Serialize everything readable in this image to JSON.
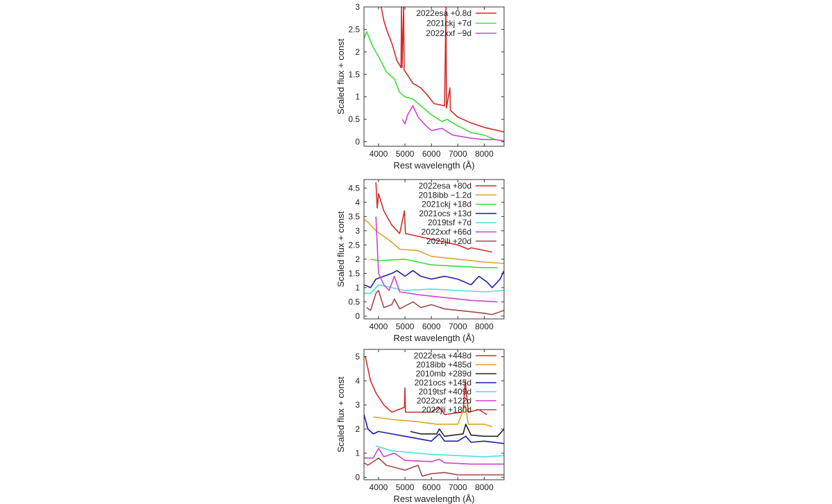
{
  "chart_data": [
    {
      "type": "line",
      "xlabel": "Rest wavelength (Å)",
      "ylabel": "Scaled flux + const",
      "xlim": [
        3450,
        8750
      ],
      "ylim": [
        -0.1,
        3
      ],
      "xticks": [
        4000,
        5000,
        6000,
        7000,
        8000
      ],
      "yticks": [
        0,
        0.5,
        1,
        1.5,
        2,
        2.5,
        3
      ],
      "legend": "top-right",
      "series": [
        {
          "name": "2022esa +0.8d",
          "color": "#d42a2a",
          "points": [
            [
              4100,
              3
            ],
            [
              4200,
              2.7
            ],
            [
              4300,
              2.5
            ],
            [
              4500,
              2.2
            ],
            [
              4700,
              1.8
            ],
            [
              4850,
              1.65
            ],
            [
              4870,
              3
            ],
            [
              4890,
              1.65
            ],
            [
              4950,
              3
            ],
            [
              4970,
              1.6
            ],
            [
              5300,
              1.3
            ],
            [
              5600,
              1.2
            ],
            [
              5900,
              1.0
            ],
            [
              6100,
              0.85
            ],
            [
              6500,
              0.8
            ],
            [
              6550,
              3
            ],
            [
              6570,
              0.75
            ],
            [
              6700,
              1.2
            ],
            [
              6720,
              0.7
            ],
            [
              7000,
              0.55
            ],
            [
              7500,
              0.42
            ],
            [
              8000,
              0.32
            ],
            [
              8750,
              0.22
            ]
          ]
        },
        {
          "name": "2021ckj +7d",
          "color": "#3cdc3c",
          "points": [
            [
              3450,
              2.3
            ],
            [
              3550,
              2.45
            ],
            [
              3800,
              2.1
            ],
            [
              4000,
              1.9
            ],
            [
              4300,
              1.55
            ],
            [
              4600,
              1.4
            ],
            [
              4800,
              1.1
            ],
            [
              5000,
              1.0
            ],
            [
              5300,
              0.95
            ],
            [
              5600,
              0.8
            ],
            [
              6000,
              0.6
            ],
            [
              6400,
              0.45
            ],
            [
              6600,
              0.5
            ],
            [
              7000,
              0.35
            ],
            [
              7200,
              0.3
            ],
            [
              7500,
              0.2
            ],
            [
              8000,
              0.15
            ],
            [
              8400,
              0.05
            ]
          ]
        },
        {
          "name": "2022xxf −9d",
          "color": "#d040d0",
          "points": [
            [
              4900,
              0.5
            ],
            [
              5000,
              0.4
            ],
            [
              5100,
              0.6
            ],
            [
              5300,
              0.8
            ],
            [
              5500,
              0.55
            ],
            [
              5800,
              0.35
            ],
            [
              6000,
              0.25
            ],
            [
              6400,
              0.3
            ],
            [
              6800,
              0.15
            ],
            [
              7500,
              0.08
            ],
            [
              8000,
              0.05
            ],
            [
              8400,
              0.05
            ],
            [
              8750,
              0.02
            ]
          ]
        }
      ]
    },
    {
      "type": "line",
      "xlabel": "Rest wavelength (Å)",
      "ylabel": "Scaled flux + const",
      "xlim": [
        3450,
        8750
      ],
      "ylim": [
        -0.1,
        4.8
      ],
      "xticks": [
        4000,
        5000,
        6000,
        7000,
        8000
      ],
      "yticks": [
        0,
        0.5,
        1,
        1.5,
        2,
        2.5,
        3,
        3.5,
        4,
        4.5
      ],
      "legend": "top-right",
      "series": [
        {
          "name": "2022esa +80d",
          "color": "#d42a2a",
          "points": [
            [
              3900,
              4.7
            ],
            [
              3950,
              3.8
            ],
            [
              4000,
              4.3
            ],
            [
              4200,
              3.7
            ],
            [
              4500,
              3.2
            ],
            [
              4800,
              2.9
            ],
            [
              4980,
              3.7
            ],
            [
              5020,
              2.9
            ],
            [
              6000,
              2.7
            ],
            [
              7000,
              2.5
            ],
            [
              7400,
              2.35
            ],
            [
              7500,
              2.4
            ],
            [
              8300,
              2.25
            ]
          ]
        },
        {
          "name": "2018ibb −1.2d",
          "color": "#e0a228",
          "points": [
            [
              3450,
              3.4
            ],
            [
              3600,
              3.3
            ],
            [
              3900,
              3.0
            ],
            [
              4200,
              2.8
            ],
            [
              4500,
              2.6
            ],
            [
              4800,
              2.35
            ],
            [
              5500,
              2.3
            ],
            [
              6000,
              2.1
            ],
            [
              7000,
              2.0
            ],
            [
              8000,
              1.9
            ],
            [
              8750,
              1.85
            ]
          ]
        },
        {
          "name": "2021ckj +18d",
          "color": "#3cdc3c",
          "points": [
            [
              3700,
              2.0
            ],
            [
              4000,
              1.95
            ],
            [
              5000,
              2.0
            ],
            [
              6000,
              1.8
            ],
            [
              7000,
              1.75
            ],
            [
              8000,
              1.7
            ],
            [
              8500,
              1.7
            ]
          ]
        },
        {
          "name": "2021ocs +13d",
          "color": "#1c1ca8",
          "points": [
            [
              3450,
              1.1
            ],
            [
              3700,
              1.0
            ],
            [
              3900,
              1.3
            ],
            [
              4200,
              1.4
            ],
            [
              4500,
              1.5
            ],
            [
              4700,
              1.6
            ],
            [
              5000,
              1.4
            ],
            [
              5300,
              1.6
            ],
            [
              5600,
              1.4
            ],
            [
              6000,
              1.3
            ],
            [
              6500,
              1.4
            ],
            [
              7000,
              1.3
            ],
            [
              7500,
              1.1
            ],
            [
              7800,
              1.4
            ],
            [
              8100,
              1.2
            ],
            [
              8300,
              1.0
            ],
            [
              8600,
              1.3
            ],
            [
              8750,
              1.6
            ]
          ]
        },
        {
          "name": "2019tsf +7d",
          "color": "#48e0e0",
          "points": [
            [
              3450,
              0.8
            ],
            [
              3700,
              0.8
            ],
            [
              4000,
              1.1
            ],
            [
              4500,
              1.0
            ],
            [
              5000,
              0.9
            ],
            [
              6000,
              0.95
            ],
            [
              7000,
              0.9
            ],
            [
              8000,
              0.85
            ],
            [
              8750,
              0.9
            ]
          ]
        },
        {
          "name": "2022xxf +66d",
          "color": "#d040d0",
          "points": [
            [
              3900,
              3.5
            ],
            [
              4000,
              1.5
            ],
            [
              4200,
              1.1
            ],
            [
              4400,
              0.9
            ],
            [
              4600,
              1.4
            ],
            [
              4800,
              0.85
            ],
            [
              5500,
              0.75
            ],
            [
              6500,
              0.65
            ],
            [
              7500,
              0.55
            ],
            [
              8500,
              0.5
            ]
          ]
        },
        {
          "name": "2022jli +20d",
          "color": "#a04848",
          "points": [
            [
              3550,
              0.3
            ],
            [
              3700,
              0.2
            ],
            [
              3900,
              0.8
            ],
            [
              4000,
              0.9
            ],
            [
              4200,
              0.3
            ],
            [
              4500,
              0.4
            ],
            [
              4600,
              0.6
            ],
            [
              4800,
              0.25
            ],
            [
              5300,
              0.5
            ],
            [
              5600,
              0.3
            ],
            [
              6000,
              0.4
            ],
            [
              6500,
              0.25
            ],
            [
              7000,
              0.2
            ],
            [
              7500,
              0.15
            ],
            [
              8000,
              0.1
            ],
            [
              8300,
              0.05
            ],
            [
              8750,
              0.2
            ]
          ]
        }
      ]
    },
    {
      "type": "line",
      "xlabel": "Rest wavelength (Å)",
      "ylabel": "Scaled flux + const",
      "xlim": [
        3450,
        8750
      ],
      "ylim": [
        -0.1,
        5.3
      ],
      "xticks": [
        4000,
        5000,
        6000,
        7000,
        8000
      ],
      "yticks": [
        0,
        1,
        2,
        3,
        4,
        5
      ],
      "legend": "top-right",
      "series": [
        {
          "name": "2022esa +448d",
          "color": "#d42a2a",
          "points": [
            [
              3500,
              5
            ],
            [
              3700,
              4
            ],
            [
              3900,
              3.5
            ],
            [
              4200,
              3.0
            ],
            [
              4500,
              2.7
            ],
            [
              4980,
              2.9
            ],
            [
              5000,
              3.7
            ],
            [
              5020,
              2.7
            ],
            [
              6000,
              2.7
            ],
            [
              6300,
              2.9
            ],
            [
              6500,
              2.6
            ],
            [
              7200,
              2.7
            ],
            [
              7280,
              4.0
            ],
            [
              7400,
              2.7
            ],
            [
              7800,
              2.8
            ],
            [
              8100,
              2.6
            ]
          ]
        },
        {
          "name": "2018ibb +485d",
          "color": "#e0a228",
          "points": [
            [
              3800,
              2.5
            ],
            [
              4500,
              2.4
            ],
            [
              5500,
              2.3
            ],
            [
              6200,
              2.2
            ],
            [
              7000,
              2.2
            ],
            [
              7280,
              3
            ],
            [
              7400,
              2.2
            ],
            [
              8000,
              2.2
            ],
            [
              8300,
              2.1
            ]
          ]
        },
        {
          "name": "2010mb +289d",
          "color": "#222222",
          "points": [
            [
              5200,
              1.9
            ],
            [
              5600,
              1.8
            ],
            [
              6200,
              1.8
            ],
            [
              6300,
              2.0
            ],
            [
              6500,
              1.7
            ],
            [
              7200,
              1.8
            ],
            [
              7300,
              2.2
            ],
            [
              7500,
              1.75
            ],
            [
              8000,
              1.7
            ],
            [
              8500,
              1.7
            ],
            [
              8750,
              2.0
            ]
          ]
        },
        {
          "name": "2021ocs +145d",
          "color": "#1c1ca8",
          "points": [
            [
              3450,
              2.6
            ],
            [
              3600,
              2.0
            ],
            [
              3800,
              1.8
            ],
            [
              4000,
              1.9
            ],
            [
              4500,
              1.8
            ],
            [
              5000,
              1.7
            ],
            [
              5500,
              1.6
            ],
            [
              6000,
              1.5
            ],
            [
              6300,
              1.8
            ],
            [
              6500,
              1.5
            ],
            [
              7000,
              1.5
            ],
            [
              7300,
              1.7
            ],
            [
              7500,
              1.45
            ],
            [
              8000,
              1.5
            ],
            [
              8750,
              1.4
            ]
          ]
        },
        {
          "name": "2019tsf +409d",
          "color": "#48e0e0",
          "points": [
            [
              3900,
              1.3
            ],
            [
              4500,
              1.1
            ],
            [
              5000,
              1.05
            ],
            [
              6000,
              0.95
            ],
            [
              7000,
              0.9
            ],
            [
              8000,
              0.85
            ],
            [
              8750,
              0.9
            ]
          ]
        },
        {
          "name": "2022xxf +122d",
          "color": "#d040d0",
          "points": [
            [
              3450,
              0.8
            ],
            [
              3800,
              0.8
            ],
            [
              4000,
              1.2
            ],
            [
              4200,
              0.85
            ],
            [
              4600,
              1.0
            ],
            [
              5000,
              0.7
            ],
            [
              6000,
              0.65
            ],
            [
              6300,
              0.75
            ],
            [
              6500,
              0.6
            ],
            [
              7500,
              0.55
            ],
            [
              8750,
              0.55
            ]
          ]
        },
        {
          "name": "2022jli +180d",
          "color": "#a04848",
          "points": [
            [
              3450,
              0.6
            ],
            [
              3600,
              0.5
            ],
            [
              4000,
              0.8
            ],
            [
              4300,
              0.5
            ],
            [
              5000,
              0.3
            ],
            [
              5500,
              0.5
            ],
            [
              5650,
              0.05
            ],
            [
              6000,
              0.15
            ],
            [
              6500,
              0.2
            ],
            [
              7000,
              0.1
            ],
            [
              8000,
              0.1
            ],
            [
              8750,
              0.1
            ]
          ]
        }
      ]
    }
  ]
}
